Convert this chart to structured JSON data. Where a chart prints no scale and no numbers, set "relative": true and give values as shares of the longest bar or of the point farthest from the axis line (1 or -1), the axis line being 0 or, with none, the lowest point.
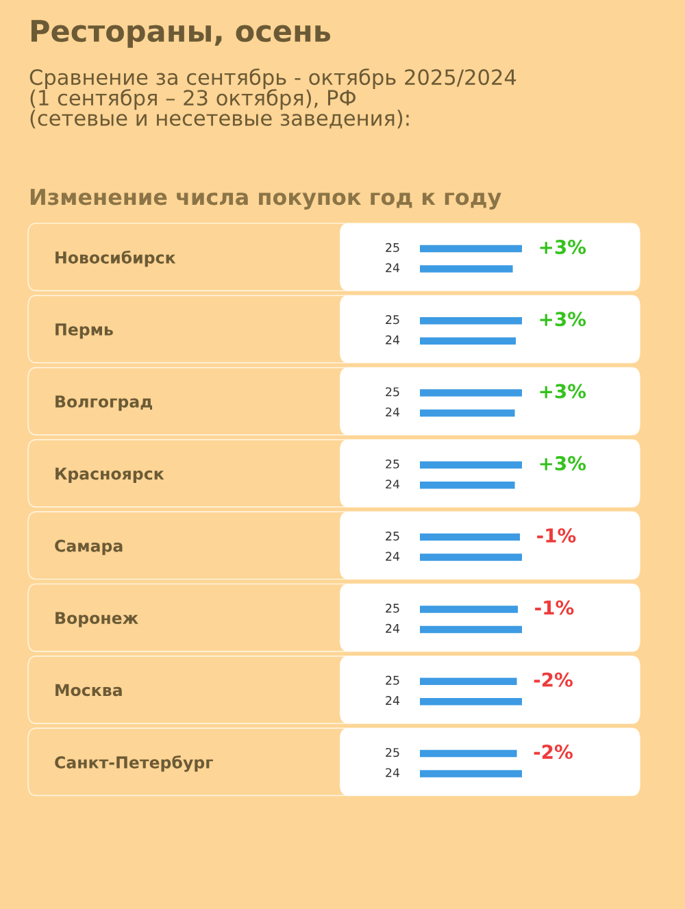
{
  "chart_data": {
    "type": "bar",
    "orientation": "horizontal",
    "relative": true,
    "title": "Рестораны, осень",
    "subtitle": "Сравнение за сентябрь - октябрь 2025/2024\n(1 сентября – 23 октября), РФ\n(сетевые и несетевые заведения):",
    "categories": [
      "Новосибирск",
      "Пермь",
      "Волгоград",
      "Красноярск",
      "Самара",
      "Воронеж",
      "Москва",
      "Санкт-Петербург"
    ],
    "series": [
      {
        "name": "25",
        "color": "#3d9be3",
        "values": [
          1.0,
          1.0,
          1.0,
          1.0,
          0.98,
          0.96,
          0.95,
          0.95
        ]
      },
      {
        "name": "24",
        "color": "#3d9be3",
        "values": [
          0.91,
          0.94,
          0.93,
          0.93,
          1.0,
          1.0,
          1.0,
          1.0
        ]
      }
    ],
    "annotations": [
      "Изменение числа покупок год к году",
      "+3%",
      "+3%",
      "+3%",
      "+3%",
      "-1%",
      "-1%",
      "-2%",
      "-2%"
    ],
    "legend": false
  }
}
